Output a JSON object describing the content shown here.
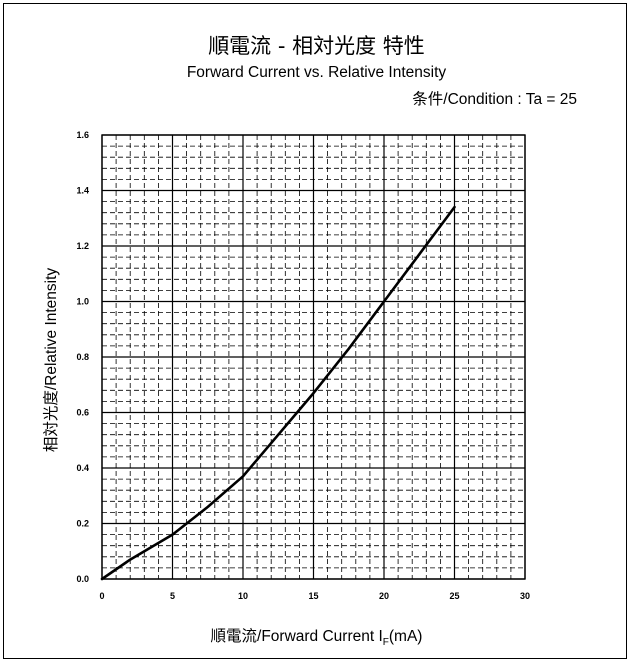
{
  "header": {
    "title_main": "順電流 - 相対光度 特性",
    "title_sub": "Forward Current vs. Relative Intensity",
    "condition": "条件/Condition : Ta = 25"
  },
  "axes": {
    "xlabel_main": "順電流/Forward Current I",
    "xlabel_sub": "F",
    "xlabel_unit": "(mA)",
    "ylabel": "相対光度/Relative Intensity"
  },
  "colors": {
    "line": "#000000",
    "grid": "#000000",
    "background": "#ffffff"
  },
  "chart_data": {
    "type": "line",
    "title": "順電流 - 相対光度 特性",
    "subtitle": "Forward Current vs. Relative Intensity",
    "xlabel": "順電流/Forward Current IF(mA)",
    "ylabel": "相対光度/Relative Intensity",
    "xlim": [
      0,
      30
    ],
    "ylim": [
      0,
      1.6
    ],
    "x_ticks": [
      0,
      5,
      10,
      15,
      20,
      25,
      30
    ],
    "y_ticks": [
      0.0,
      0.2,
      0.4,
      0.6,
      0.8,
      1.0,
      1.2,
      1.4,
      1.6
    ],
    "x_tick_labels": [
      "0",
      "5",
      "10",
      "15",
      "20",
      "25",
      "30"
    ],
    "y_tick_labels": [
      "0.0",
      "0.2",
      "0.4",
      "0.6",
      "0.8",
      "1.0",
      "1.2",
      "1.4",
      "1.6"
    ],
    "grid": true,
    "series": [
      {
        "x": [
          0,
          2,
          5,
          7.5,
          10,
          12.5,
          15,
          17.5,
          20,
          22.5,
          25
        ],
        "y": [
          0,
          0.07,
          0.16,
          0.26,
          0.37,
          0.52,
          0.67,
          0.83,
          1.0,
          1.17,
          1.34
        ]
      }
    ]
  }
}
